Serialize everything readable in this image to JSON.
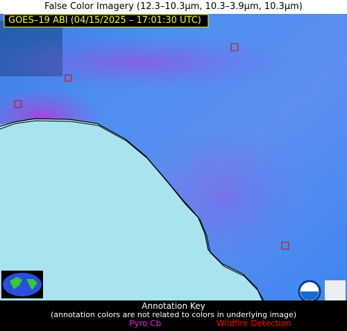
{
  "title": "False Color Imagery (12.3–10.3µm, 10.3–3.9µm, 10.3µm)",
  "stamp": "GOES–19 ABI (04/15/2025 – 17:01:30 UTC)",
  "key": {
    "heading": "Annotation Key",
    "note": "(annotation colors are not related to colors in underlying image)",
    "items": [
      "Pyro Cb",
      "Wildfire Detection"
    ]
  }
}
